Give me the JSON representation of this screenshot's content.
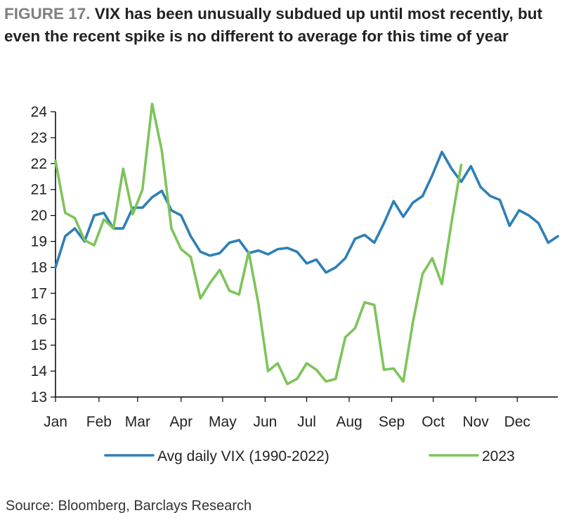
{
  "header": {
    "figure_label": "FIGURE 17.",
    "title_text": "VIX has been unusually subdued up until most recently, but even the recent spike is no different to average for this time of year"
  },
  "footer": {
    "source": "Source: Bloomberg, Barclays Research"
  },
  "colors": {
    "avg": "#2e7fb6",
    "y2023": "#7dc45a",
    "axis": "#000000"
  },
  "chart_data": {
    "type": "line",
    "title": "VIX has been unusually subdued up until most recently, but even the recent spike is no different to average for this time of year",
    "xlabel": "",
    "ylabel": "",
    "ylim": [
      13,
      24
    ],
    "yticks": [
      13,
      14,
      15,
      16,
      17,
      18,
      19,
      20,
      21,
      22,
      23,
      24
    ],
    "x_unit": "week of year",
    "xlim": [
      1,
      53
    ],
    "month_ticks": [
      {
        "label": "Jan",
        "week": 1
      },
      {
        "label": "Feb",
        "week": 5.5
      },
      {
        "label": "Mar",
        "week": 9.5
      },
      {
        "label": "Apr",
        "week": 14
      },
      {
        "label": "May",
        "week": 18.3
      },
      {
        "label": "Jun",
        "week": 22.7
      },
      {
        "label": "Jul",
        "week": 27
      },
      {
        "label": "Aug",
        "week": 31.4
      },
      {
        "label": "Sep",
        "week": 35.8
      },
      {
        "label": "Oct",
        "week": 40.1
      },
      {
        "label": "Nov",
        "week": 44.5
      },
      {
        "label": "Dec",
        "week": 48.8
      }
    ],
    "grid": false,
    "legend_position": "bottom",
    "series": [
      {
        "name": "Avg daily VIX (1990-2022)",
        "color": "#2e7fb6",
        "x": [
          1,
          2,
          3,
          4,
          5,
          6,
          7,
          8,
          9,
          10,
          11,
          12,
          13,
          14,
          15,
          16,
          17,
          18,
          19,
          20,
          21,
          22,
          23,
          24,
          25,
          26,
          27,
          28,
          29,
          30,
          31,
          32,
          33,
          34,
          35,
          36,
          37,
          38,
          39,
          40,
          41,
          42,
          43,
          44,
          45,
          46,
          47,
          48,
          49,
          50,
          51,
          52,
          53
        ],
        "values": [
          18.0,
          19.2,
          19.5,
          19.0,
          20.0,
          20.1,
          19.5,
          19.5,
          20.3,
          20.3,
          20.7,
          20.95,
          20.2,
          20.0,
          19.2,
          18.6,
          18.45,
          18.55,
          18.95,
          19.05,
          18.55,
          18.65,
          18.5,
          18.7,
          18.75,
          18.6,
          18.15,
          18.3,
          17.8,
          18.0,
          18.35,
          19.1,
          19.25,
          18.95,
          19.7,
          20.55,
          19.95,
          20.5,
          20.75,
          21.55,
          22.45,
          21.8,
          21.3,
          21.9,
          21.1,
          20.75,
          20.6,
          19.6,
          20.2,
          20.0,
          19.7,
          18.95,
          19.2
        ]
      },
      {
        "name": "2023",
        "color": "#7dc45a",
        "x": [
          1,
          2,
          3,
          4,
          5,
          6,
          7,
          8,
          9,
          10,
          11,
          12,
          13,
          14,
          15,
          16,
          17,
          18,
          19,
          20,
          21,
          22,
          23,
          24,
          25,
          26,
          27,
          28,
          29,
          30,
          31,
          32,
          33,
          34,
          35,
          36,
          37,
          38,
          39,
          40,
          41,
          42,
          43
        ],
        "values": [
          22.1,
          20.1,
          19.9,
          19.05,
          18.85,
          19.85,
          19.5,
          21.8,
          20.05,
          21.0,
          24.3,
          22.5,
          19.5,
          18.7,
          18.4,
          16.8,
          17.4,
          17.9,
          17.1,
          16.95,
          18.6,
          16.6,
          14.0,
          14.3,
          13.5,
          13.7,
          14.3,
          14.05,
          13.6,
          13.7,
          15.3,
          15.65,
          16.65,
          16.55,
          14.05,
          14.1,
          13.6,
          15.9,
          17.75,
          18.35,
          17.35,
          19.75,
          21.95
        ]
      }
    ]
  }
}
